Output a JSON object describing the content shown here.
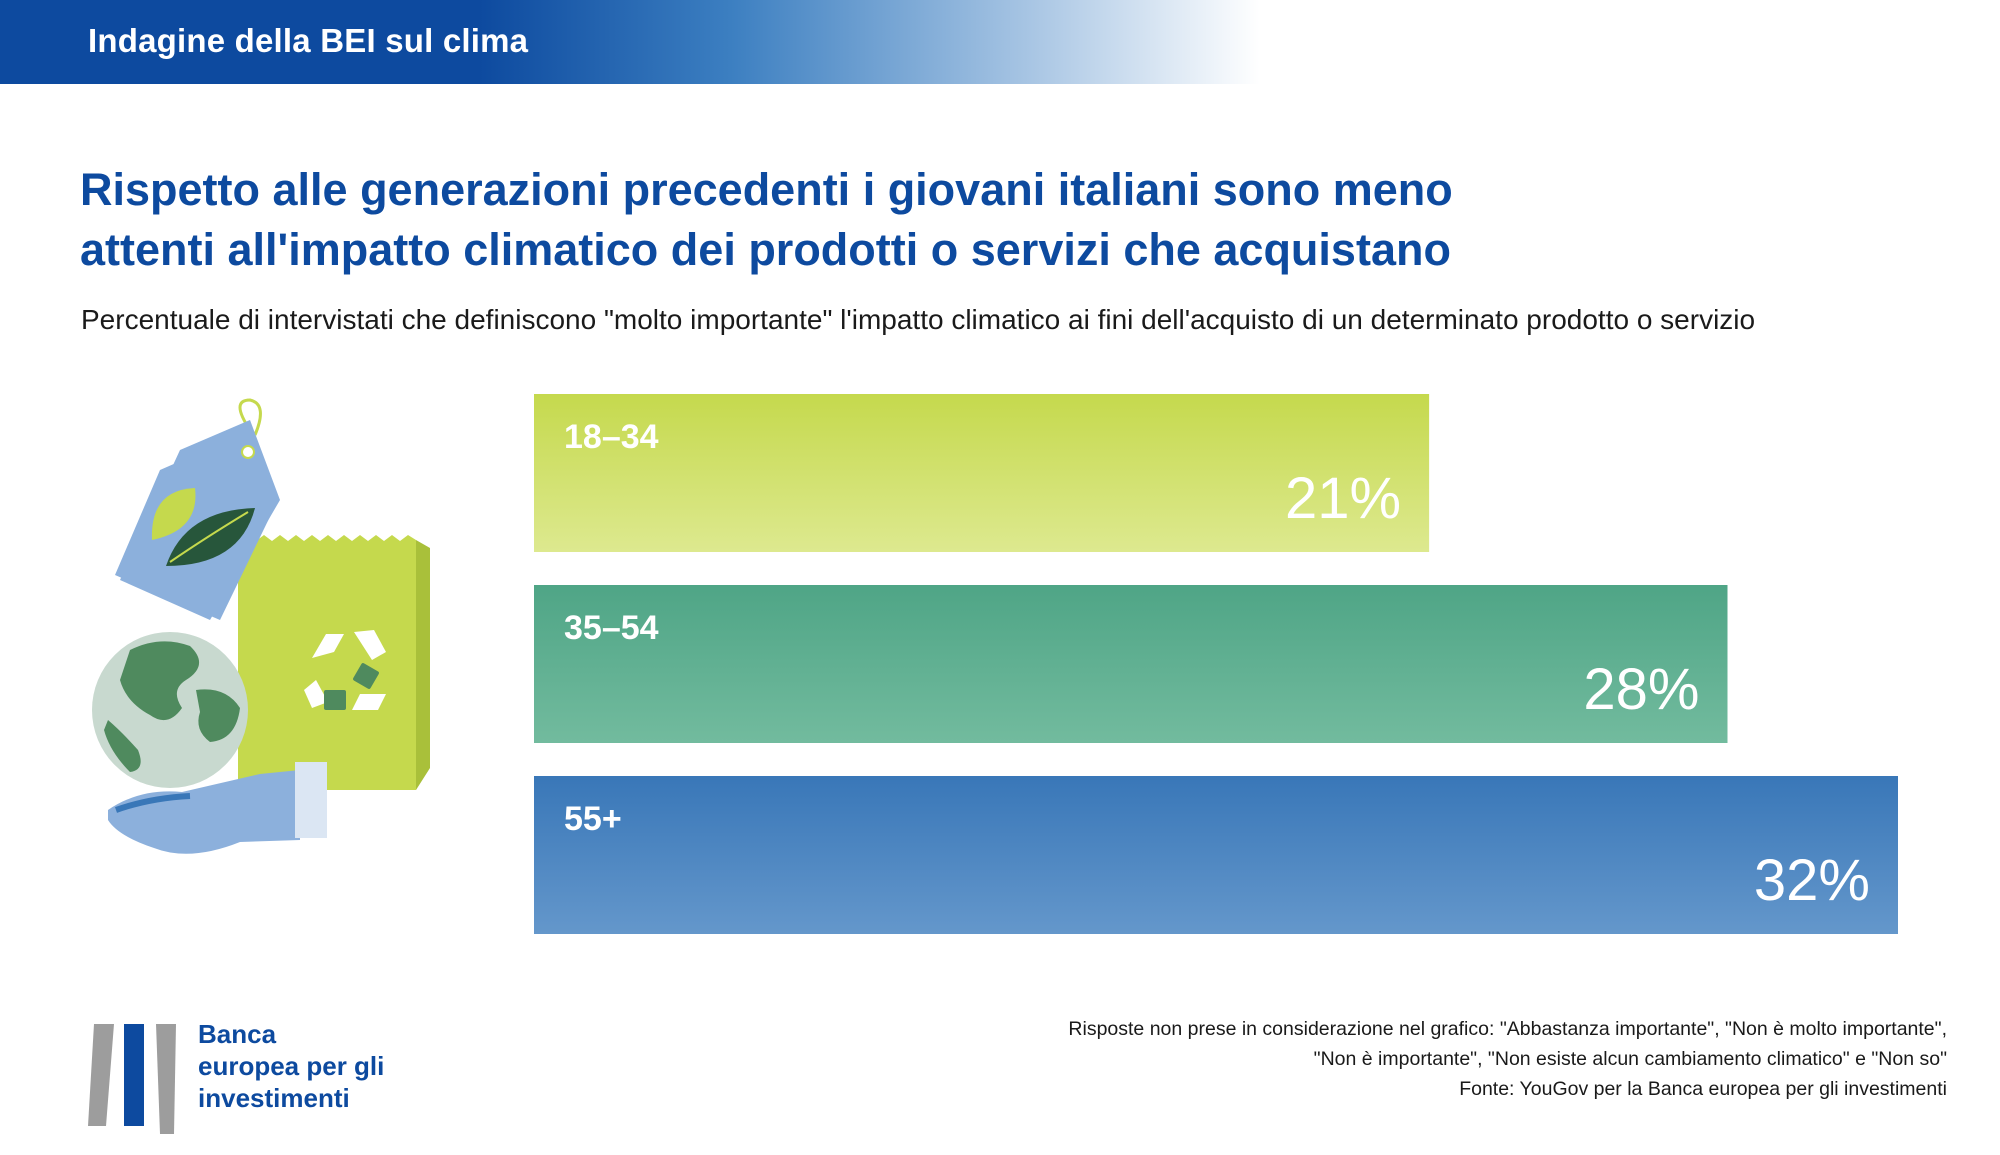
{
  "header": {
    "banner": "Indagine della BEI sul clima"
  },
  "title_lines": [
    "Rispetto alle generazioni precedenti i giovani italiani sono meno",
    "attenti all'impatto climatico dei prodotti o servizi che acquistano"
  ],
  "subtitle": "Percentuale di intervistati che definiscono \"molto importante\" l'impatto climatico ai fini dell'acquisto di un determinato prodotto o servizio",
  "chart_data": {
    "type": "bar",
    "orientation": "horizontal",
    "categories": [
      "18–34",
      "35–54",
      "55+"
    ],
    "values": [
      21,
      28,
      32
    ],
    "value_labels": [
      "21%",
      "28%",
      "32%"
    ],
    "unit": "%",
    "xlim": [
      0,
      32
    ],
    "grid": false,
    "colors": [
      {
        "top": "#c5d94d",
        "bottom": "#dde98f"
      },
      {
        "top": "#4fa586",
        "bottom": "#72bb9e"
      },
      {
        "top": "#3977b8",
        "bottom": "#6497cb"
      }
    ]
  },
  "illustration": {
    "icons": [
      "price-tag-leaf-icon",
      "recycle-bag-icon",
      "globe-in-hand-icon"
    ],
    "colors": {
      "blue": "#8cb0dc",
      "lime": "#c5d94d",
      "green": "#4f8a5e",
      "light": "#c8d9cf"
    }
  },
  "footer": {
    "logo_lines": [
      "Banca",
      "europea per gli",
      "investimenti"
    ],
    "notes": [
      "Risposte non prese in considerazione nel grafico: \"Abbastanza importante\", \"Non è molto importante\",",
      "\"Non è importante\", \"Non esiste alcun cambiamento climatico\" e \"Non so\"",
      "Fonte: YouGov per la Banca europea per gli investimenti"
    ]
  }
}
